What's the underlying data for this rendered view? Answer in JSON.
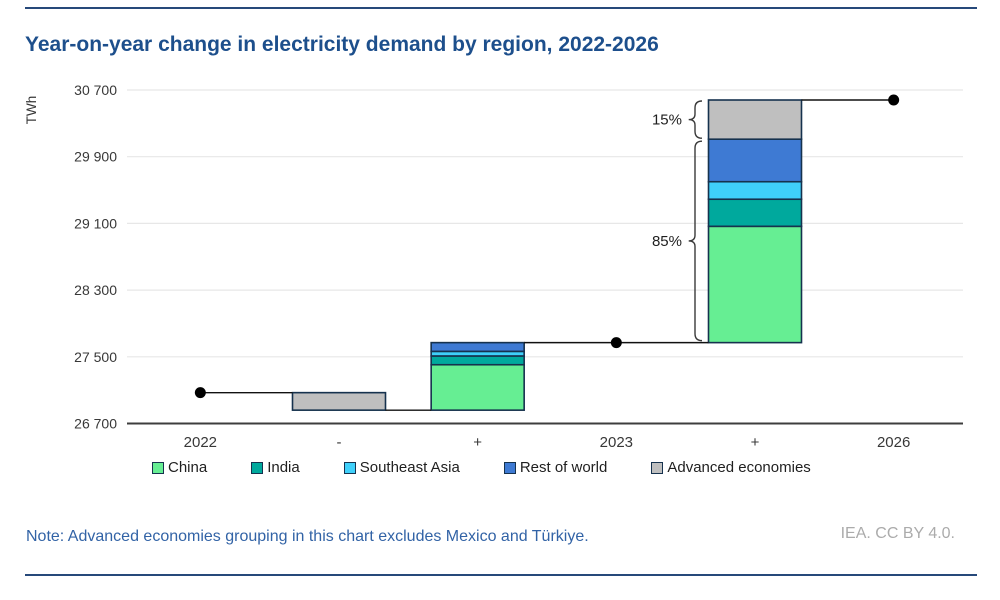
{
  "header": {
    "title": "Year-on-year change in electricity demand by region, 2022-2026"
  },
  "footer": {
    "note": "Note: Advanced economies grouping in this chart excludes Mexico and Türkiye.",
    "attribution": "IEA. CC BY 4.0."
  },
  "chart_data": {
    "type": "waterfall",
    "title": "Year-on-year change in electricity demand by region, 2022-2026",
    "ylabel": "TWh",
    "y_axis": {
      "min": 26700,
      "max": 30700,
      "tick_step": 800,
      "ticks": [
        26700,
        27500,
        28300,
        29100,
        29900,
        30700
      ],
      "grid": true
    },
    "x_categories": [
      "2022",
      "-",
      "+",
      "2023",
      "+",
      "2026"
    ],
    "columns": [
      {
        "type": "point",
        "label": "2022",
        "value": 27070
      },
      {
        "type": "bar",
        "label": "-",
        "direction": "decrease",
        "segments": [
          {
            "region": "Advanced economies",
            "value": 210
          }
        ]
      },
      {
        "type": "bar",
        "label": "+",
        "direction": "increase",
        "segments": [
          {
            "region": "China",
            "value": 545
          },
          {
            "region": "India",
            "value": 105
          },
          {
            "region": "Southeast Asia",
            "value": 55
          },
          {
            "region": "Rest of world",
            "value": 105
          }
        ]
      },
      {
        "type": "point",
        "label": "2023",
        "value": 27670
      },
      {
        "type": "bar",
        "label": "+",
        "direction": "increase",
        "segments": [
          {
            "region": "China",
            "value": 1395
          },
          {
            "region": "India",
            "value": 325
          },
          {
            "region": "Southeast Asia",
            "value": 210
          },
          {
            "region": "Rest of world",
            "value": 510
          },
          {
            "region": "Advanced economies",
            "value": 470
          }
        ]
      },
      {
        "type": "point",
        "label": "2026",
        "value": 30580
      }
    ],
    "annotations": [
      {
        "text": "15%",
        "applies_to": "Advanced economies share of 2023-2026 growth"
      },
      {
        "text": "85%",
        "applies_to": "China, India, Southeast Asia and rest of world share of 2023-2026 growth"
      }
    ],
    "legend": {
      "position": "bottom",
      "entries": [
        {
          "label": "China",
          "color": "#66ee93"
        },
        {
          "label": "India",
          "color": "#00a99d"
        },
        {
          "label": "Southeast Asia",
          "color": "#3fd0fa"
        },
        {
          "label": "Rest of world",
          "color": "#3e7ad3"
        },
        {
          "label": "Advanced economies",
          "color": "#bfbfbf"
        }
      ]
    },
    "styles": {
      "bar_outline": "#16324e",
      "connector": "#111111",
      "dot": "#000000",
      "gridline": "#e7e7e7",
      "axis_line": "#3d3d3d",
      "tick_label": "#383838",
      "bracket": "#3a3a3a",
      "annotation_text": "#1f1f1f"
    }
  }
}
